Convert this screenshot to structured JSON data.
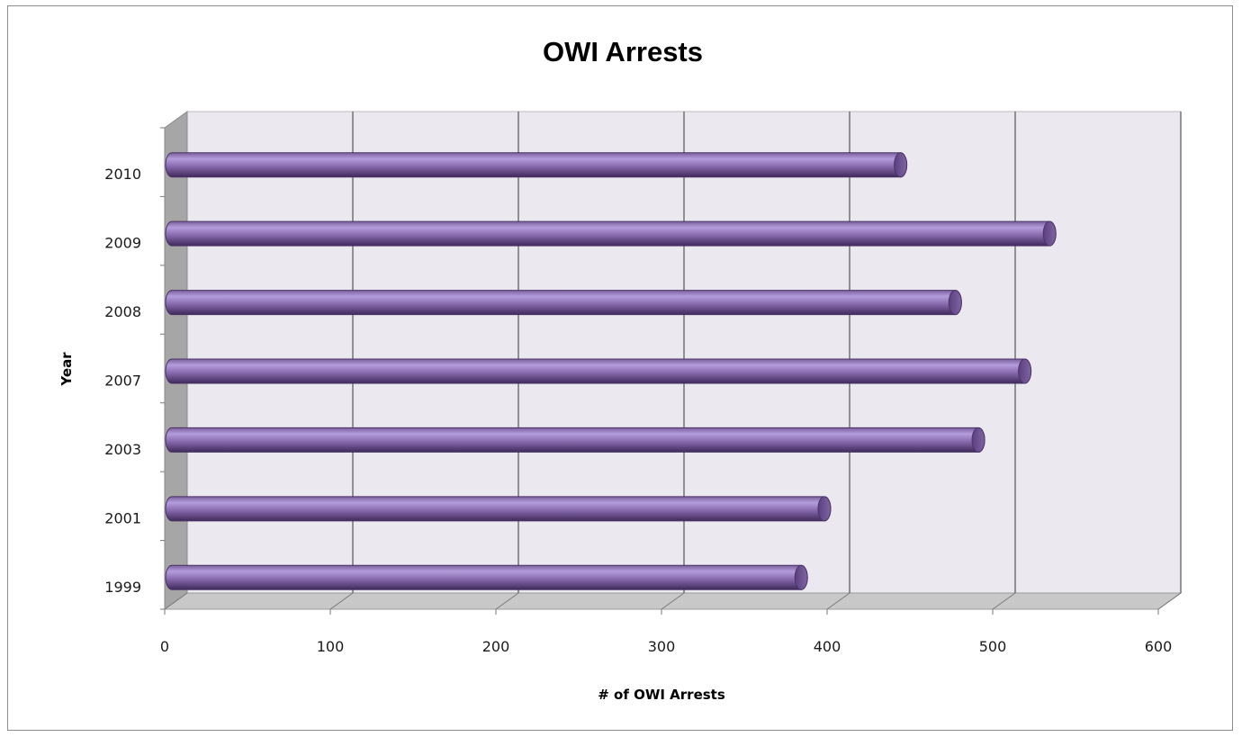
{
  "chart_data": {
    "type": "bar",
    "orientation": "horizontal",
    "style": "3d-cylinder",
    "title": "OWI Arrests",
    "xlabel": "# of OWI Arrests",
    "ylabel": "Year",
    "categories": [
      "1999",
      "2001",
      "2003",
      "2007",
      "2008",
      "2009",
      "2010"
    ],
    "values": [
      380,
      394,
      487,
      515,
      473,
      530,
      440
    ],
    "xlim": [
      0,
      600
    ],
    "xticks": [
      "0",
      "100",
      "200",
      "300",
      "400",
      "500",
      "600"
    ],
    "grid": true,
    "legend": "none",
    "colors": {
      "bar": "#8064a2",
      "bar_highlight": "#b39ddb",
      "bar_shadow": "#4b3366",
      "wall": "#ebe8f0",
      "side_wall": "#a6a6a6",
      "floor": "#c8c8c8",
      "grid": "#555555"
    }
  }
}
